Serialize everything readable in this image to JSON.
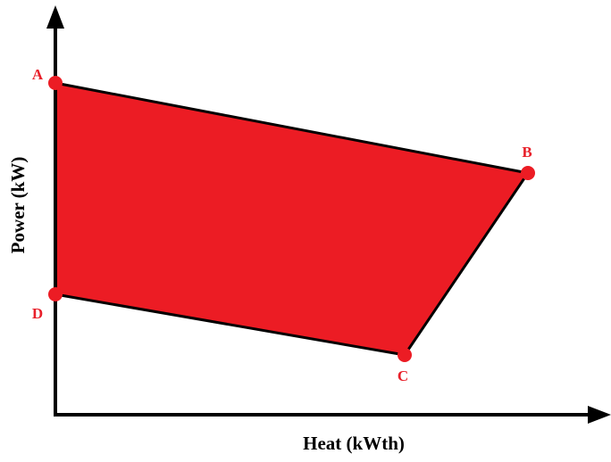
{
  "axes": {
    "x_label": "Heat (kWth)",
    "y_label": "Power (kW)"
  },
  "points": [
    {
      "label": "A"
    },
    {
      "label": "B"
    },
    {
      "label": "C"
    },
    {
      "label": "D"
    }
  ]
}
